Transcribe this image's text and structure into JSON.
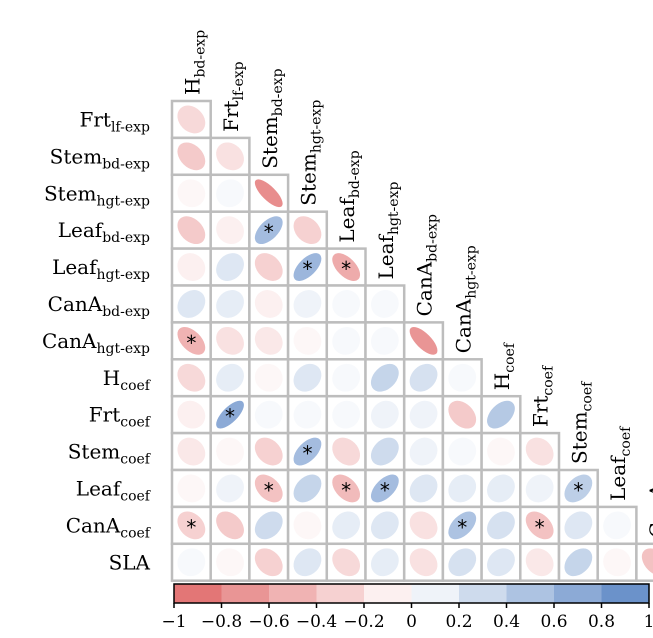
{
  "chart_data": {
    "type": "heatmap",
    "style": "lower-triangle correlation ellipses",
    "variables": [
      {
        "base": "H",
        "sub": "bd-exp"
      },
      {
        "base": "Frt",
        "sub": "lf-exp"
      },
      {
        "base": "Stem",
        "sub": "bd-exp"
      },
      {
        "base": "Stem",
        "sub": "hgt-exp"
      },
      {
        "base": "Leaf",
        "sub": "bd-exp"
      },
      {
        "base": "Leaf",
        "sub": "hgt-exp"
      },
      {
        "base": "CanA",
        "sub": "bd-exp"
      },
      {
        "base": "CanA",
        "sub": "hgt-exp"
      },
      {
        "base": "H",
        "sub": "coef"
      },
      {
        "base": "Frt",
        "sub": "coef"
      },
      {
        "base": "Stem",
        "sub": "coef"
      },
      {
        "base": "Leaf",
        "sub": "coef"
      },
      {
        "base": "CanA",
        "sub": "coef"
      },
      {
        "base": "SLA",
        "sub": ""
      }
    ],
    "lower_triangle_rows": [
      [
        -0.25
      ],
      [
        -0.35,
        -0.2
      ],
      [
        -0.05,
        0.05,
        -0.75
      ],
      [
        -0.35,
        -0.1,
        0.55,
        -0.3
      ],
      [
        -0.1,
        0.2,
        -0.3,
        0.6,
        -0.55
      ],
      [
        0.2,
        0.15,
        -0.1,
        0.1,
        0.05,
        0.05
      ],
      [
        -0.5,
        -0.2,
        -0.15,
        -0.05,
        0.05,
        0.05,
        -0.7
      ],
      [
        -0.25,
        0.15,
        -0.05,
        0.2,
        0.05,
        0.35,
        0.25,
        0.05
      ],
      [
        -0.1,
        0.7,
        0.05,
        0.05,
        0.05,
        0.1,
        0.1,
        -0.35,
        0.45
      ],
      [
        -0.15,
        -0.05,
        -0.3,
        0.55,
        -0.25,
        0.3,
        0.1,
        0.05,
        -0.05,
        -0.2
      ],
      [
        -0.05,
        0.1,
        -0.4,
        0.35,
        -0.45,
        0.55,
        0.2,
        0.15,
        0.15,
        0.1,
        0.4
      ],
      [
        -0.3,
        -0.35,
        0.3,
        -0.05,
        0.15,
        0.2,
        -0.2,
        0.5,
        0.25,
        -0.4,
        0.2,
        0.05
      ],
      [
        0.05,
        -0.05,
        -0.3,
        0.2,
        -0.25,
        0.15,
        -0.2,
        0.25,
        0.2,
        -0.15,
        0.35,
        -0.05,
        -0.4
      ]
    ],
    "significant_cells": [
      [
        3,
        2
      ],
      [
        4,
        3
      ],
      [
        4,
        4
      ],
      [
        6,
        0
      ],
      [
        8,
        1
      ],
      [
        9,
        3
      ],
      [
        10,
        2
      ],
      [
        10,
        4
      ],
      [
        10,
        5
      ],
      [
        10,
        10
      ],
      [
        11,
        0
      ],
      [
        11,
        7
      ],
      [
        11,
        9
      ]
    ],
    "colorbar": {
      "ticks": [
        "−1",
        "−0.8",
        "−0.6",
        "−0.4",
        "−0.2",
        "0",
        "0.2",
        "0.4",
        "0.6",
        "0.8",
        "1"
      ],
      "range": [
        -1,
        1
      ],
      "negative_color": "#e06767",
      "zero_color": "#ffffff",
      "positive_color": "#5a86c4"
    },
    "significance_marker": "*"
  }
}
